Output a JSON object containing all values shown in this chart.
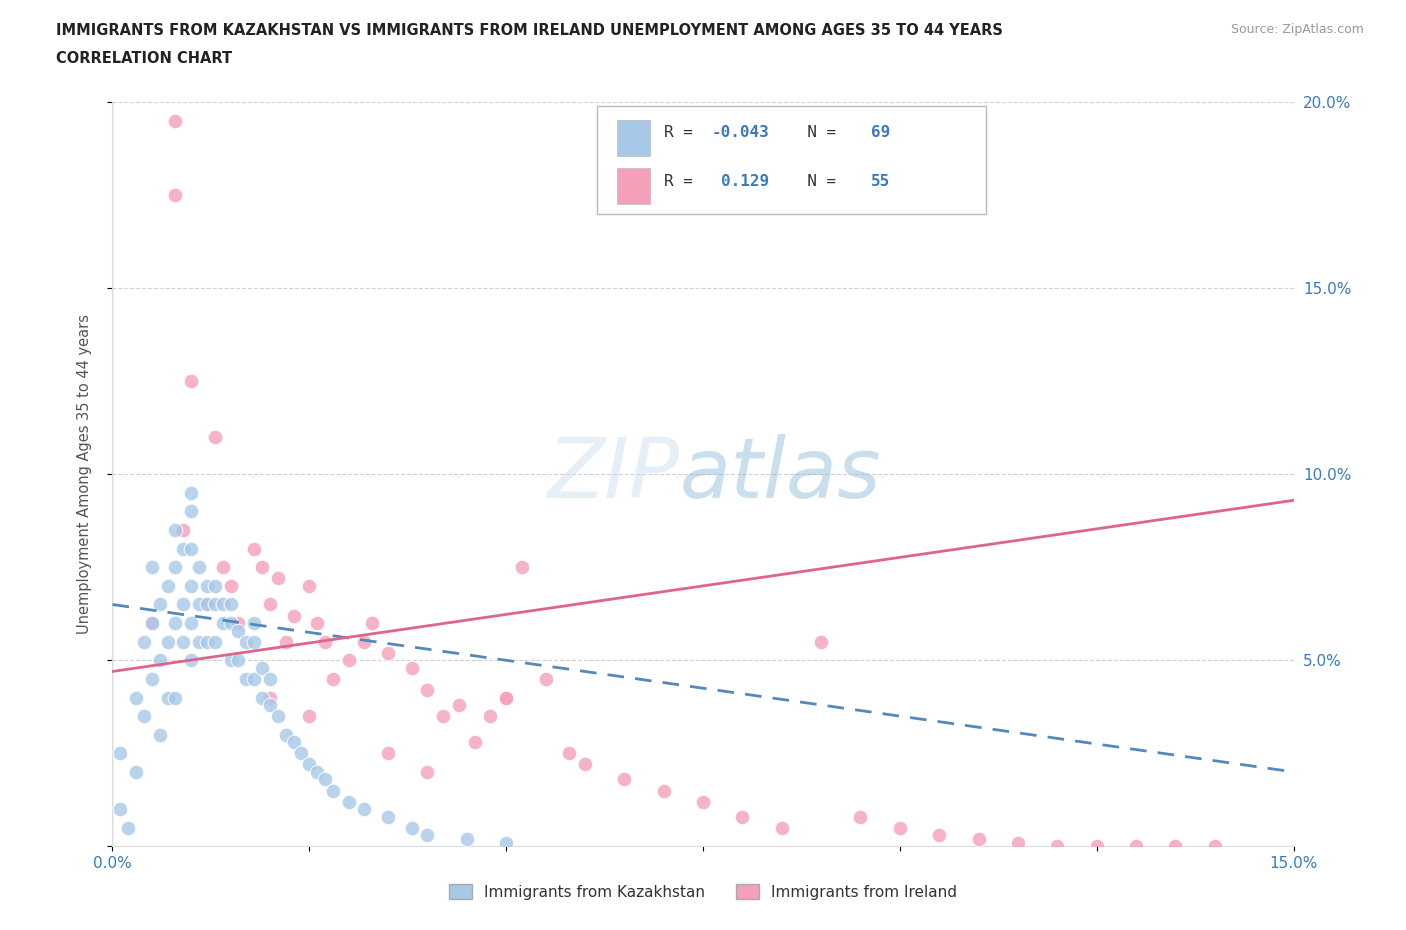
{
  "title_line1": "IMMIGRANTS FROM KAZAKHSTAN VS IMMIGRANTS FROM IRELAND UNEMPLOYMENT AMONG AGES 35 TO 44 YEARS",
  "title_line2": "CORRELATION CHART",
  "source_text": "Source: ZipAtlas.com",
  "ylabel": "Unemployment Among Ages 35 to 44 years",
  "xlim": [
    0.0,
    0.15
  ],
  "ylim": [
    0.0,
    0.2
  ],
  "color_kaz": "#a8c8e8",
  "color_ire": "#f4a0b8",
  "color_kaz_line": "#5588bb",
  "color_ire_line": "#dd6688",
  "legend_R_kaz": "-0.043",
  "legend_N_kaz": "69",
  "legend_R_ire": "0.129",
  "legend_N_ire": "55",
  "background_color": "#ffffff",
  "kaz_trend_start": 0.065,
  "kaz_trend_end": 0.02,
  "ire_trend_start": 0.047,
  "ire_trend_end": 0.093,
  "kaz_x": [
    0.001,
    0.002,
    0.003,
    0.004,
    0.004,
    0.005,
    0.005,
    0.005,
    0.006,
    0.006,
    0.007,
    0.007,
    0.007,
    0.008,
    0.008,
    0.008,
    0.009,
    0.009,
    0.009,
    0.01,
    0.01,
    0.01,
    0.01,
    0.01,
    0.011,
    0.011,
    0.011,
    0.012,
    0.012,
    0.012,
    0.013,
    0.013,
    0.013,
    0.014,
    0.014,
    0.015,
    0.015,
    0.015,
    0.016,
    0.016,
    0.017,
    0.017,
    0.018,
    0.018,
    0.018,
    0.019,
    0.019,
    0.02,
    0.02,
    0.021,
    0.022,
    0.023,
    0.024,
    0.025,
    0.026,
    0.027,
    0.028,
    0.03,
    0.032,
    0.035,
    0.038,
    0.04,
    0.045,
    0.05,
    0.001,
    0.003,
    0.006,
    0.008,
    0.01
  ],
  "kaz_y": [
    0.01,
    0.005,
    0.02,
    0.035,
    0.055,
    0.045,
    0.06,
    0.075,
    0.05,
    0.065,
    0.04,
    0.055,
    0.07,
    0.06,
    0.075,
    0.085,
    0.055,
    0.065,
    0.08,
    0.05,
    0.06,
    0.07,
    0.08,
    0.09,
    0.055,
    0.065,
    0.075,
    0.055,
    0.065,
    0.07,
    0.055,
    0.065,
    0.07,
    0.06,
    0.065,
    0.05,
    0.06,
    0.065,
    0.05,
    0.058,
    0.045,
    0.055,
    0.045,
    0.055,
    0.06,
    0.04,
    0.048,
    0.038,
    0.045,
    0.035,
    0.03,
    0.028,
    0.025,
    0.022,
    0.02,
    0.018,
    0.015,
    0.012,
    0.01,
    0.008,
    0.005,
    0.003,
    0.002,
    0.001,
    0.025,
    0.04,
    0.03,
    0.04,
    0.095
  ],
  "ire_x": [
    0.008,
    0.01,
    0.012,
    0.013,
    0.015,
    0.016,
    0.018,
    0.019,
    0.02,
    0.021,
    0.022,
    0.023,
    0.025,
    0.026,
    0.027,
    0.028,
    0.03,
    0.032,
    0.033,
    0.035,
    0.038,
    0.04,
    0.042,
    0.044,
    0.046,
    0.048,
    0.05,
    0.052,
    0.055,
    0.058,
    0.06,
    0.065,
    0.07,
    0.075,
    0.08,
    0.085,
    0.09,
    0.095,
    0.1,
    0.105,
    0.11,
    0.115,
    0.12,
    0.125,
    0.13,
    0.135,
    0.14,
    0.005,
    0.009,
    0.014,
    0.02,
    0.025,
    0.035,
    0.04,
    0.05
  ],
  "ire_y": [
    0.175,
    0.125,
    0.065,
    0.11,
    0.07,
    0.06,
    0.08,
    0.075,
    0.065,
    0.072,
    0.055,
    0.062,
    0.07,
    0.06,
    0.055,
    0.045,
    0.05,
    0.055,
    0.06,
    0.052,
    0.048,
    0.042,
    0.035,
    0.038,
    0.028,
    0.035,
    0.04,
    0.075,
    0.045,
    0.025,
    0.022,
    0.018,
    0.015,
    0.012,
    0.008,
    0.005,
    0.055,
    0.008,
    0.005,
    0.003,
    0.002,
    0.001,
    0.0,
    0.0,
    0.0,
    0.0,
    0.0,
    0.06,
    0.085,
    0.075,
    0.04,
    0.035,
    0.025,
    0.02,
    0.04
  ],
  "ire_outlier_x": [
    0.008
  ],
  "ire_outlier_y": [
    0.195
  ]
}
